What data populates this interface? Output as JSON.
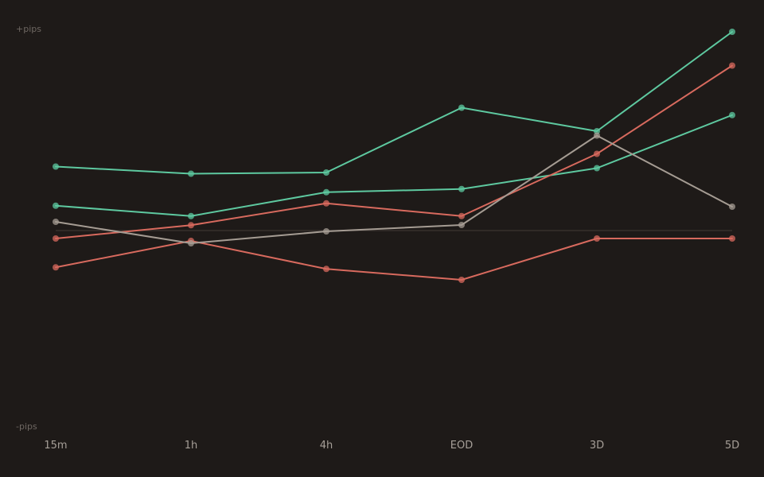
{
  "colors": {
    "background": "#1e1a18",
    "zero_line": "#36302c",
    "axis_text": "#6e6762",
    "tick_text": "#a69f98"
  },
  "chart_data": {
    "type": "line",
    "title": "",
    "xlabel": "",
    "ylabel": "",
    "y_top_label": "+pips",
    "y_bottom_label": "-pips",
    "grid": false,
    "legend": "none",
    "ylim": [
      -100,
      100
    ],
    "zero_line": true,
    "categories": [
      "15m",
      "1h",
      "4h",
      "EOD",
      "3D",
      "5D"
    ],
    "series": [
      {
        "color": "#5ec9a0",
        "values": [
          32.2,
          28.6,
          29.2,
          61.8,
          50.0,
          100.0
        ]
      },
      {
        "color": "#5ec9a0",
        "values": [
          12.5,
          7.3,
          19.3,
          20.9,
          31.4,
          58.1
        ]
      },
      {
        "color": "#d86a5e",
        "values": [
          -4.0,
          2.7,
          13.7,
          7.3,
          38.6,
          83.0
        ]
      },
      {
        "color": "#d86a5e",
        "values": [
          -18.5,
          -5.2,
          -19.3,
          -24.8,
          -4.0,
          -4.0
        ]
      },
      {
        "color": "#a59c93",
        "values": [
          4.4,
          -6.4,
          -0.4,
          2.8,
          47.8,
          12.0
        ]
      }
    ]
  }
}
